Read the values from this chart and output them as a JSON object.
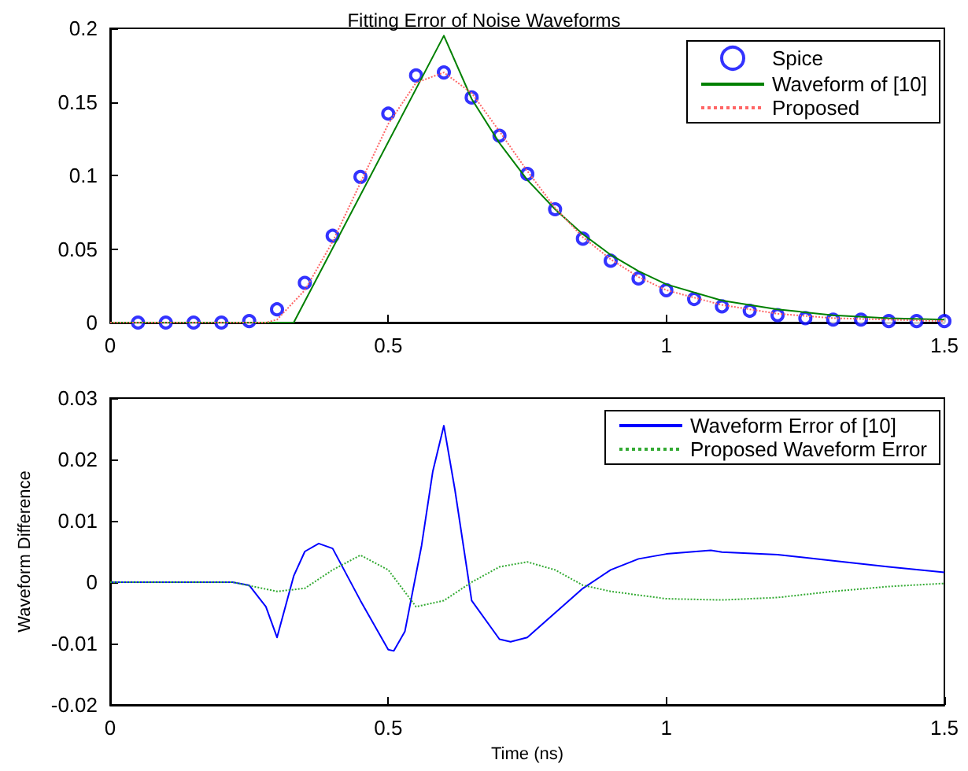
{
  "chart_data": [
    {
      "type": "line",
      "title": "Fitting Error of Noise Waveforms",
      "xlim": [
        0,
        1.5
      ],
      "xticks": [
        0,
        0.5,
        1,
        1.5
      ],
      "ylim": [
        0,
        0.2
      ],
      "yticks": [
        0,
        0.05,
        0.1,
        0.15,
        0.2
      ],
      "grid": false,
      "legend": "top right",
      "series": [
        {
          "name": "Spice",
          "type": "scatter",
          "marker": "circle",
          "color": "#0000ff",
          "x": [
            0.05,
            0.1,
            0.15,
            0.2,
            0.25,
            0.3,
            0.35,
            0.4,
            0.45,
            0.5,
            0.55,
            0.6,
            0.65,
            0.7,
            0.75,
            0.8,
            0.85,
            0.9,
            0.95,
            1.0,
            1.05,
            1.1,
            1.15,
            1.2,
            1.25,
            1.3,
            1.35,
            1.4,
            1.45,
            1.5
          ],
          "values": [
            0,
            0,
            0,
            0,
            0.001,
            0.009,
            0.027,
            0.059,
            0.099,
            0.142,
            0.168,
            0.17,
            0.153,
            0.127,
            0.101,
            0.077,
            0.057,
            0.042,
            0.03,
            0.022,
            0.016,
            0.011,
            0.008,
            0.005,
            0.003,
            0.002,
            0.002,
            0.001,
            0.001,
            0.001
          ]
        },
        {
          "name": "Waveform of [10]",
          "marker": "none",
          "line_style": "solid",
          "color": "#008000",
          "x": [
            0,
            0.33,
            0.6,
            0.65,
            0.7,
            0.75,
            0.8,
            0.85,
            0.9,
            0.95,
            1.0,
            1.1,
            1.2,
            1.3,
            1.4,
            1.5
          ],
          "values": [
            0,
            0,
            0.195,
            0.152,
            0.122,
            0.097,
            0.077,
            0.06,
            0.046,
            0.035,
            0.026,
            0.015,
            0.009,
            0.005,
            0.003,
            0.002
          ]
        },
        {
          "name": "Proposed",
          "marker": "none",
          "line_style": "dotted",
          "color": "#ff6666",
          "x": [
            0,
            0.28,
            0.3,
            0.35,
            0.4,
            0.45,
            0.5,
            0.55,
            0.6,
            0.65,
            0.7,
            0.75,
            0.8,
            0.85,
            0.9,
            0.95,
            1.0,
            1.1,
            1.2,
            1.3,
            1.4,
            1.5
          ],
          "values": [
            0,
            0,
            0.002,
            0.022,
            0.055,
            0.095,
            0.135,
            0.163,
            0.17,
            0.156,
            0.13,
            0.103,
            0.078,
            0.058,
            0.043,
            0.031,
            0.022,
            0.012,
            0.006,
            0.003,
            0.002,
            0.001
          ]
        }
      ]
    },
    {
      "type": "line",
      "xlabel": "Time (ns)",
      "ylabel": "Waveform Difference",
      "xlim": [
        0,
        1.5
      ],
      "xticks": [
        0,
        0.5,
        1,
        1.5
      ],
      "ylim": [
        -0.02,
        0.03
      ],
      "yticks": [
        -0.02,
        -0.01,
        0,
        0.01,
        0.02,
        0.03
      ],
      "grid": false,
      "legend": "top right",
      "series": [
        {
          "name": "Waveform Error of [10]",
          "marker": "none",
          "line_style": "solid",
          "color": "#0000ff",
          "x": [
            0,
            0.22,
            0.25,
            0.28,
            0.3,
            0.33,
            0.35,
            0.375,
            0.4,
            0.45,
            0.5,
            0.51,
            0.53,
            0.56,
            0.58,
            0.6,
            0.62,
            0.65,
            0.7,
            0.72,
            0.75,
            0.8,
            0.85,
            0.9,
            0.95,
            1.0,
            1.08,
            1.1,
            1.2,
            1.3,
            1.4,
            1.5
          ],
          "values": [
            0,
            0,
            -0.0005,
            -0.004,
            -0.009,
            0.001,
            0.005,
            0.0063,
            0.0055,
            -0.003,
            -0.011,
            -0.0112,
            -0.008,
            0.006,
            0.018,
            0.0255,
            0.015,
            -0.003,
            -0.0093,
            -0.0097,
            -0.009,
            -0.005,
            -0.001,
            0.002,
            0.0038,
            0.0046,
            0.0052,
            0.0049,
            0.0045,
            0.0035,
            0.0025,
            0.0016
          ]
        },
        {
          "name": "Proposed Waveform Error",
          "marker": "none",
          "line_style": "dotted",
          "color": "#33aa33",
          "x": [
            0,
            0.22,
            0.3,
            0.35,
            0.4,
            0.45,
            0.5,
            0.55,
            0.6,
            0.65,
            0.7,
            0.75,
            0.8,
            0.85,
            0.9,
            1.0,
            1.1,
            1.2,
            1.3,
            1.4,
            1.5
          ],
          "values": [
            0,
            0,
            -0.0015,
            -0.001,
            0.002,
            0.0044,
            0.002,
            -0.004,
            -0.003,
            0,
            0.0025,
            0.0033,
            0.002,
            -0.0005,
            -0.0015,
            -0.0027,
            -0.0029,
            -0.0025,
            -0.0015,
            -0.0007,
            -0.0002
          ]
        }
      ]
    }
  ]
}
